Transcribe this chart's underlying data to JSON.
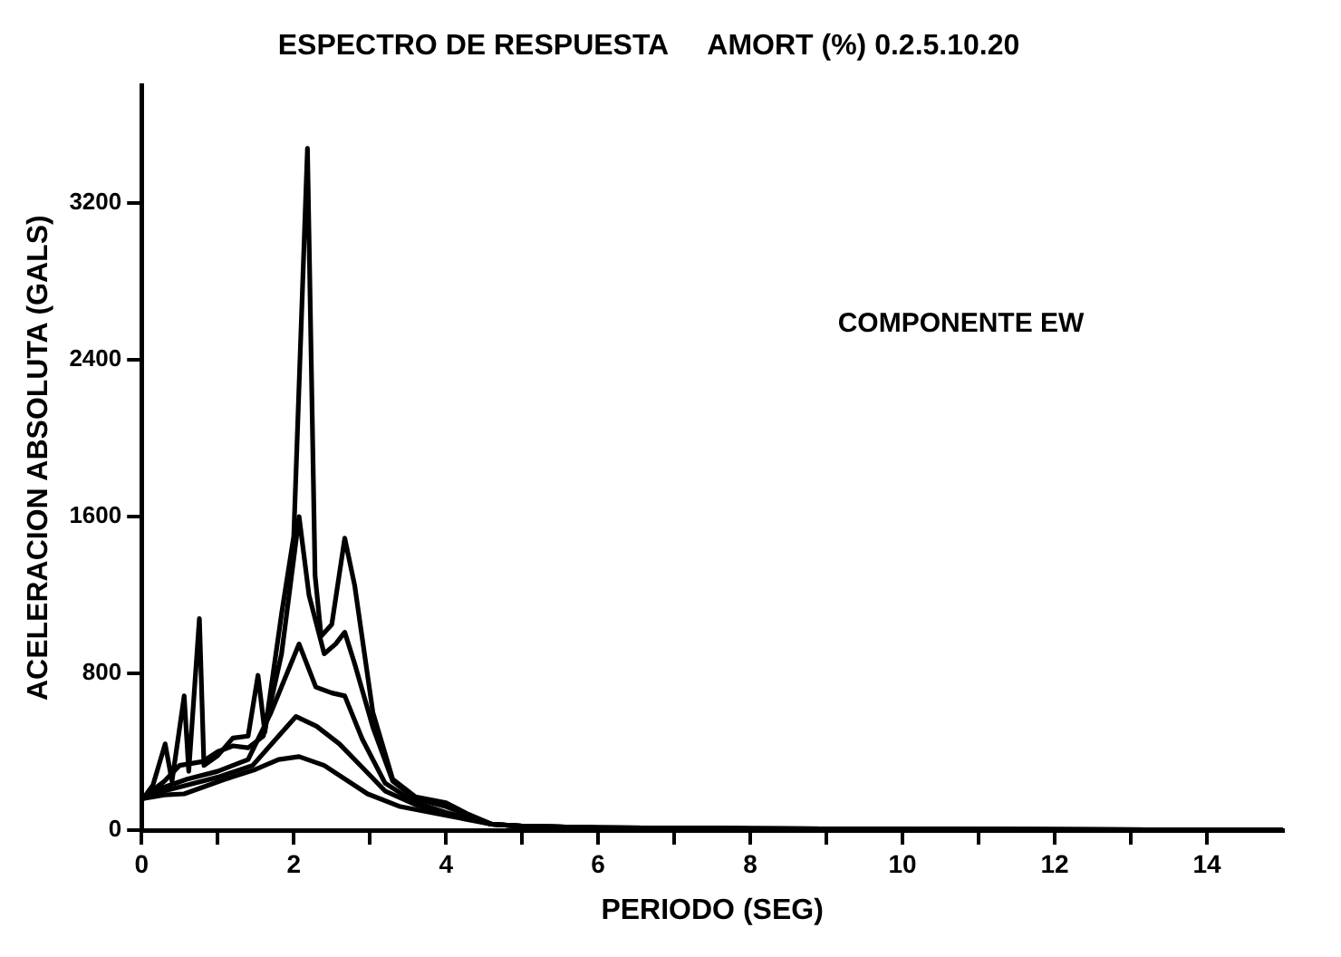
{
  "chart_data": {
    "type": "line",
    "title": "ESPECTRO DE RESPUESTA     AMORT (%) 0.2.5.10.20",
    "xlabel": "PERIODO (SEG)",
    "ylabel": "ACELERACION ABSOLUTA (GALS)",
    "annotations": [
      "COMPONENTE EW"
    ],
    "xlim": [
      0,
      15
    ],
    "ylim": [
      0,
      3800
    ],
    "xticks": [
      0,
      {
        "value": 1,
        "label": null
      },
      2,
      {
        "value": 3,
        "label": null
      },
      4,
      {
        "value": 5,
        "label": null
      },
      6,
      {
        "value": 7,
        "label": null
      },
      8,
      {
        "value": 9,
        "label": null
      },
      10,
      {
        "value": 11,
        "label": null
      },
      12,
      {
        "value": 13,
        "label": null
      },
      14
    ],
    "yticks": [
      0,
      800,
      1600,
      2400,
      3200
    ],
    "grid": false,
    "legend": false,
    "marker": "none",
    "line_style": "solid",
    "series": [
      {
        "color": "#000000",
        "x": [
          0,
          0.15,
          0.31,
          0.4,
          0.56,
          0.62,
          0.76,
          0.82,
          1.0,
          1.2,
          1.4,
          1.53,
          1.62,
          1.84,
          2.0,
          2.18,
          2.28,
          2.36,
          2.5,
          2.67,
          2.8,
          3.04,
          3.3,
          3.6,
          4.0,
          4.3,
          4.6,
          5.0,
          6.0,
          8.0,
          10.0,
          12.0,
          14.0,
          15.0
        ],
        "values": [
          150,
          230,
          440,
          250,
          685,
          300,
          1080,
          330,
          380,
          470,
          480,
          790,
          500,
          1105,
          1500,
          3480,
          1300,
          990,
          1050,
          1490,
          1250,
          600,
          260,
          170,
          140,
          80,
          30,
          20,
          12,
          8,
          5,
          3,
          2,
          1
        ]
      },
      {
        "color": "#000000",
        "x": [
          0,
          0.3,
          0.5,
          0.8,
          1.0,
          1.2,
          1.4,
          1.6,
          1.84,
          2.07,
          2.2,
          2.4,
          2.55,
          2.67,
          2.8,
          3.04,
          3.3,
          3.6,
          4.0,
          4.6,
          5.0,
          6.0,
          8.0,
          10.0,
          12.0,
          14.0,
          15.0
        ],
        "values": [
          160,
          250,
          330,
          350,
          400,
          430,
          420,
          480,
          900,
          1600,
          1200,
          900,
          950,
          1010,
          850,
          525,
          250,
          160,
          120,
          30,
          20,
          12,
          8,
          5,
          3,
          2,
          1
        ]
      },
      {
        "color": "#000000",
        "x": [
          0,
          0.3,
          0.6,
          1.0,
          1.4,
          1.7,
          2.07,
          2.29,
          2.5,
          2.67,
          2.9,
          3.2,
          3.6,
          4.0,
          4.6,
          5.0,
          6.0,
          8.0,
          10.0,
          12.0,
          14.0,
          15.0
        ],
        "values": [
          160,
          220,
          260,
          300,
          360,
          600,
          950,
          730,
          700,
          685,
          465,
          240,
          140,
          90,
          30,
          20,
          12,
          8,
          5,
          3,
          2,
          1
        ]
      },
      {
        "color": "#000000",
        "x": [
          0,
          0.3,
          0.6,
          1.0,
          1.46,
          1.8,
          2.03,
          2.3,
          2.6,
          2.9,
          3.2,
          3.6,
          4.0,
          4.6,
          5.0,
          6.0,
          8.0,
          10.0,
          12.0,
          14.0,
          15.0
        ],
        "values": [
          160,
          200,
          230,
          270,
          330,
          480,
          580,
          530,
          440,
          320,
          200,
          130,
          85,
          30,
          20,
          12,
          8,
          5,
          3,
          2,
          1
        ]
      },
      {
        "color": "#000000",
        "x": [
          0,
          0.3,
          0.56,
          1.1,
          1.5,
          1.8,
          2.07,
          2.4,
          2.97,
          3.4,
          4.0,
          4.6,
          5.0,
          6.0,
          8.0,
          10.0,
          12.0,
          14.0,
          15.0
        ],
        "values": [
          160,
          180,
          185,
          260,
          310,
          360,
          375,
          330,
          185,
          120,
          75,
          30,
          20,
          12,
          8,
          5,
          3,
          2,
          1
        ]
      }
    ]
  }
}
